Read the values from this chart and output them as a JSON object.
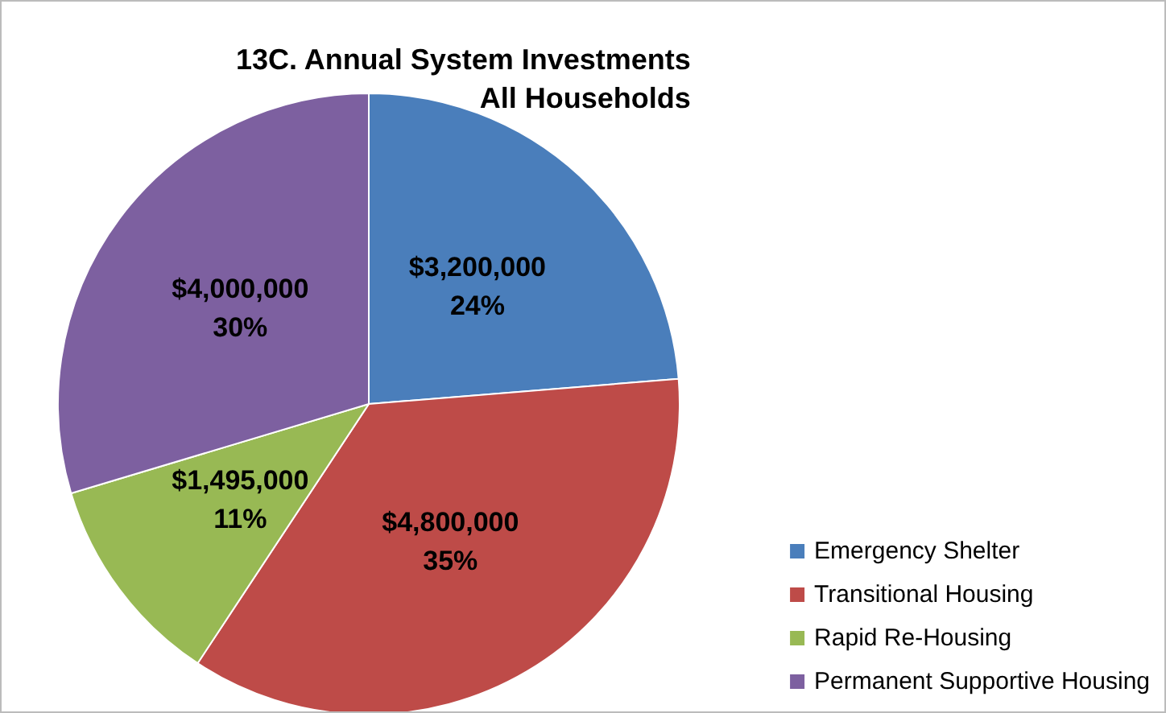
{
  "chart_data": {
    "type": "pie",
    "title": "13C. Annual System Investments",
    "subtitle": "All Households",
    "categories": [
      "Emergency Shelter",
      "Transitional Housing",
      "Rapid Re-Housing",
      "Permanent Supportive Housing"
    ],
    "values": [
      3200000,
      4800000,
      1495000,
      4000000
    ],
    "colors": [
      "#4a7ebb",
      "#be4b48",
      "#98b954",
      "#7d60a0"
    ],
    "value_labels": [
      "$3,200,000\n24%",
      "$4,800,000\n35%",
      "$1,495,000\n11%",
      "$4,000,000\n30%"
    ],
    "legend": "bottom right"
  }
}
